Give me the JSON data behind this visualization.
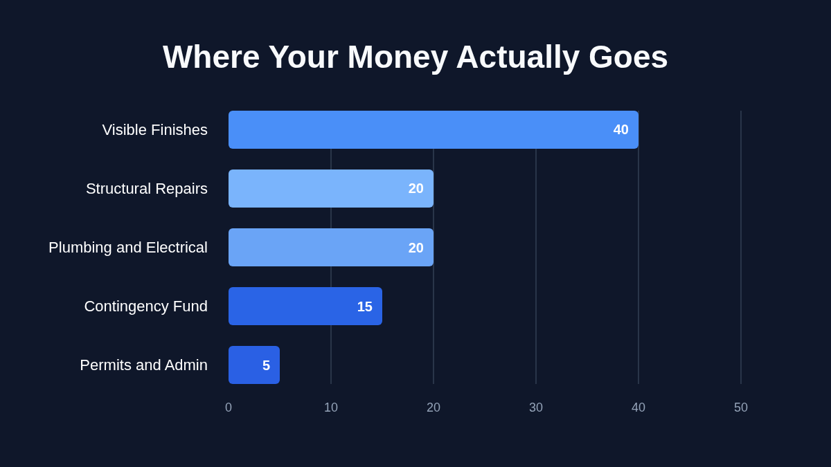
{
  "chart_data": {
    "type": "bar",
    "orientation": "horizontal",
    "title": "Where Your Money Actually Goes",
    "categories": [
      "Visible Finishes",
      "Structural Repairs",
      "Plumbing and Electrical",
      "Contingency Fund",
      "Permits and Admin"
    ],
    "values": [
      40,
      20,
      20,
      15,
      5
    ],
    "colors": [
      "#4a8ff8",
      "#7ab4fc",
      "#6aa4f6",
      "#2a64e6",
      "#2a60e4"
    ],
    "xlim": [
      0,
      50
    ],
    "xticks": [
      0,
      10,
      20,
      30,
      40,
      50
    ],
    "grid": "x",
    "data_labels": true
  }
}
